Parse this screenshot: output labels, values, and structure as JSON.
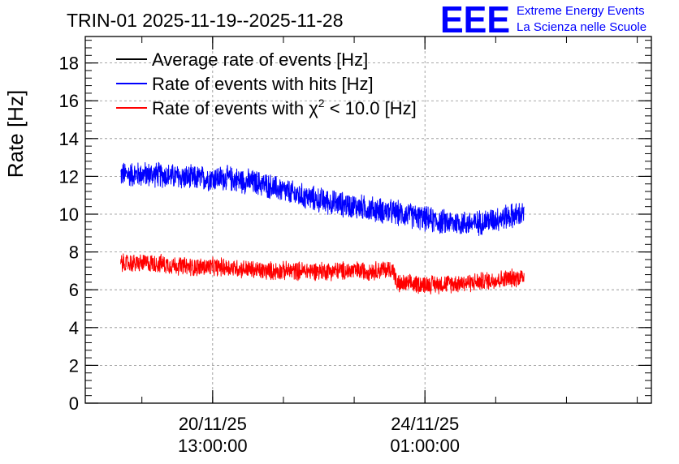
{
  "chart_data": {
    "type": "line",
    "title": "TRIN-01 2025-11-19--2025-11-28",
    "ylabel": "Rate [Hz]",
    "xlabel": "",
    "ylim": [
      0,
      19.4
    ],
    "yticks": [
      0,
      2,
      4,
      6,
      8,
      10,
      12,
      14,
      16,
      18
    ],
    "xlim_days": [
      0,
      8.0
    ],
    "xticks": [
      {
        "day": 1.8,
        "line1": "20/11/25",
        "line2": "13:00:00"
      },
      {
        "day": 4.8,
        "line1": "24/11/25",
        "line2": "01:00:00"
      }
    ],
    "grid": true,
    "legend_position": "top-left",
    "series": [
      {
        "name": "Average rate of events [Hz]",
        "color": "#000000",
        "x": [],
        "y": []
      },
      {
        "name": "Rate of events with hits [Hz]",
        "color": "#0000ff",
        "x": [
          0.5,
          1.0,
          1.5,
          2.0,
          2.5,
          3.0,
          3.5,
          4.0,
          4.5,
          5.0,
          5.5,
          6.0,
          6.2
        ],
        "y": [
          12.1,
          12.1,
          11.9,
          11.9,
          11.6,
          11.0,
          10.6,
          10.3,
          10.0,
          9.6,
          9.5,
          9.9,
          10.0
        ],
        "noise": 0.75
      },
      {
        "name": "Rate of events with χ² < 10.0 [Hz]",
        "color": "#ff0000",
        "x": [
          0.5,
          1.0,
          1.5,
          2.0,
          2.5,
          3.0,
          3.5,
          4.0,
          4.35,
          4.4,
          5.0,
          5.5,
          6.0,
          6.2
        ],
        "y": [
          7.4,
          7.4,
          7.2,
          7.2,
          7.0,
          7.0,
          7.0,
          7.0,
          7.1,
          6.3,
          6.3,
          6.4,
          6.6,
          6.7
        ],
        "noise": 0.55
      }
    ],
    "legend_entries": [
      {
        "pre": "Average rate of events [Hz]"
      },
      {
        "pre": "Rate of events with hits [Hz]"
      },
      {
        "pre": "Rate of events with ",
        "chi": "χ",
        "sup": "2",
        "post": " < 10.0 [Hz]"
      }
    ]
  },
  "logo": {
    "mark": "EEE",
    "line1": "Extreme Energy Events",
    "line2": "La Scienza nelle Scuole",
    "color": "#0000ff"
  }
}
